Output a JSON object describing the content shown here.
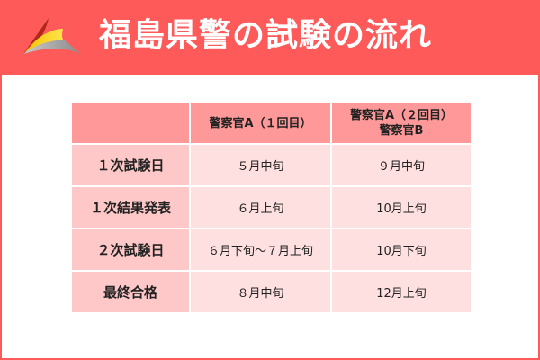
{
  "header": {
    "title": "福島県警の試験の流れ",
    "logo_icon": "triangle-swoosh-logo",
    "background": "#ff5a5a"
  },
  "table": {
    "columns": [
      "",
      "警察官A（１回目）",
      "警察官A（２回目）",
      "警察官B"
    ],
    "rows": [
      {
        "label": "１次試験日",
        "a1": "５月中旬",
        "a2b": "９月中旬"
      },
      {
        "label": "１次結果発表",
        "a1": "６月上旬",
        "a2b": "10月上旬"
      },
      {
        "label": "２次試験日",
        "a1": "６月下旬～７月上旬",
        "a2b": "10月下旬"
      },
      {
        "label": "最終合格",
        "a1": "８月中旬",
        "a2b": "12月上旬"
      }
    ],
    "colors": {
      "header": "#ff9999",
      "row_header": "#ffc8c8",
      "cell": "#ffe0e0"
    }
  }
}
